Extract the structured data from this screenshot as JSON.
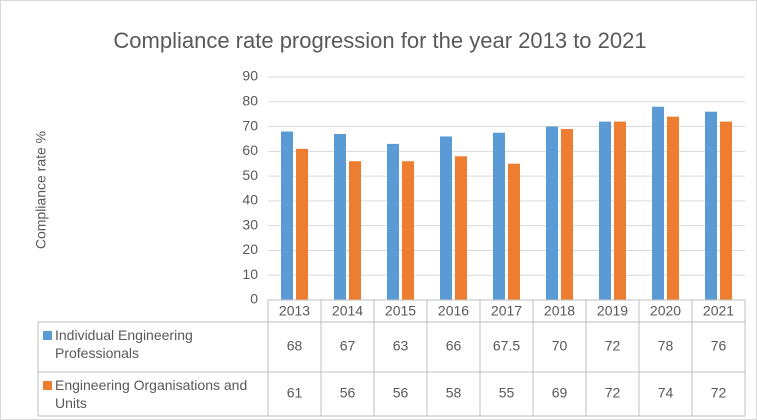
{
  "chart_data": {
    "type": "bar",
    "title": "Compliance rate progression for the year 2013 to 2021",
    "y_label": "Compliance rate %",
    "categories": [
      "2013",
      "2014",
      "2015",
      "2016",
      "2017",
      "2018",
      "2019",
      "2020",
      "2021"
    ],
    "series": [
      {
        "name": "Individual Engineering Professionals",
        "color": "#5b9bd5",
        "values": [
          68,
          67,
          63,
          66,
          67.5,
          70,
          72,
          78,
          76
        ]
      },
      {
        "name": "Engineering Organisations and Units",
        "color": "#ed7d31",
        "values": [
          61,
          56,
          56,
          58,
          55,
          69,
          72,
          74,
          72
        ]
      }
    ],
    "ylim": [
      0,
      90
    ],
    "yticks": [
      0,
      10,
      20,
      30,
      40,
      50,
      60,
      70,
      80,
      90
    ],
    "grid": true
  }
}
